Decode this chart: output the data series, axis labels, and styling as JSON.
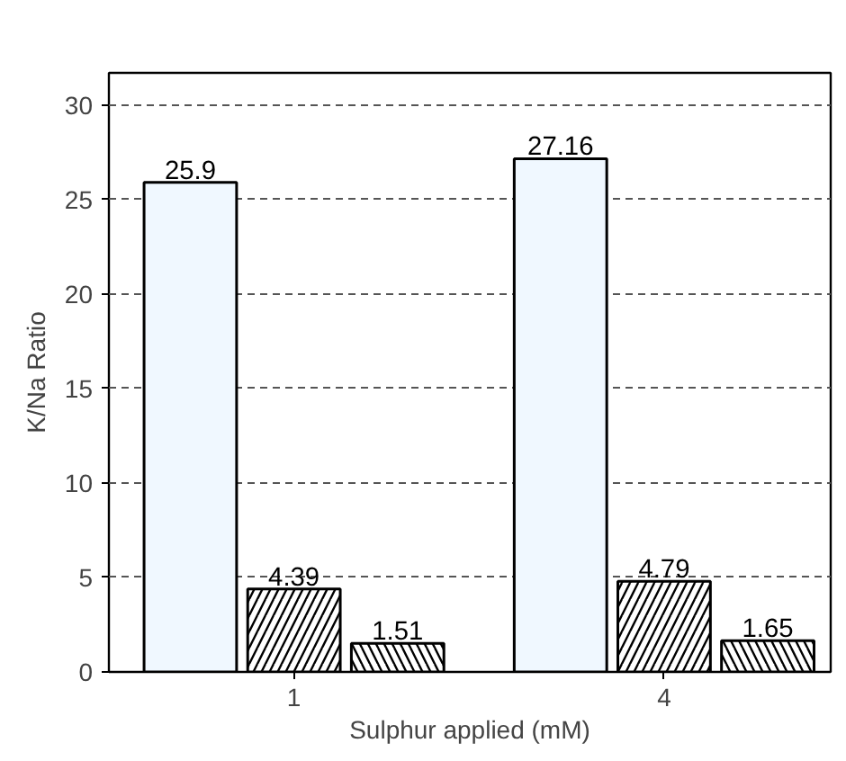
{
  "chart_data": {
    "type": "bar",
    "xlabel": "Sulphur applied (mM)",
    "ylabel": "K/Na Ratio",
    "categories": [
      "1",
      "4"
    ],
    "series": [
      {
        "color": "#f0f8ff",
        "values": [
          25.9,
          27.16
        ]
      },
      {
        "color": "#ffffff",
        "values": [
          4.39,
          4.79
        ]
      },
      {
        "color": "#ffffff",
        "values": [
          1.51,
          1.65
        ]
      }
    ],
    "ylim": [
      0,
      31.7
    ],
    "yticks": [
      0,
      5,
      10,
      15,
      20,
      25,
      30
    ],
    "grid": "y",
    "data_labels": true
  }
}
